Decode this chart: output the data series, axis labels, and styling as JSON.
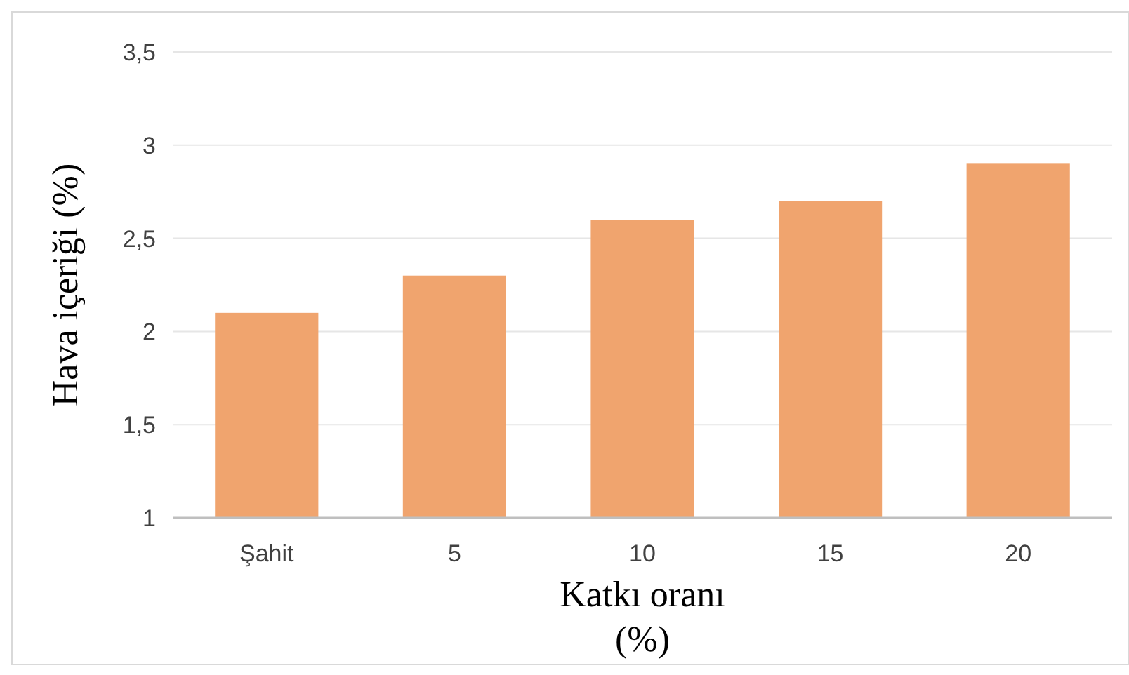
{
  "chart_data": {
    "type": "bar",
    "xlabel": "Katkı oranı\n(%)",
    "ylabel": "Hava içeriği (%)",
    "categories": [
      "Şahit",
      "5",
      "10",
      "15",
      "20"
    ],
    "values": [
      2.1,
      2.3,
      2.6,
      2.7,
      2.9
    ],
    "color": "#f0a46e",
    "ylim": [
      1,
      3.5
    ],
    "yticks": [
      1,
      {
        "value": 1.5,
        "label": "1,5"
      },
      2,
      {
        "value": 2.5,
        "label": "2,5"
      },
      3,
      {
        "value": 3.5,
        "label": "3,5"
      }
    ],
    "grid": "y"
  }
}
